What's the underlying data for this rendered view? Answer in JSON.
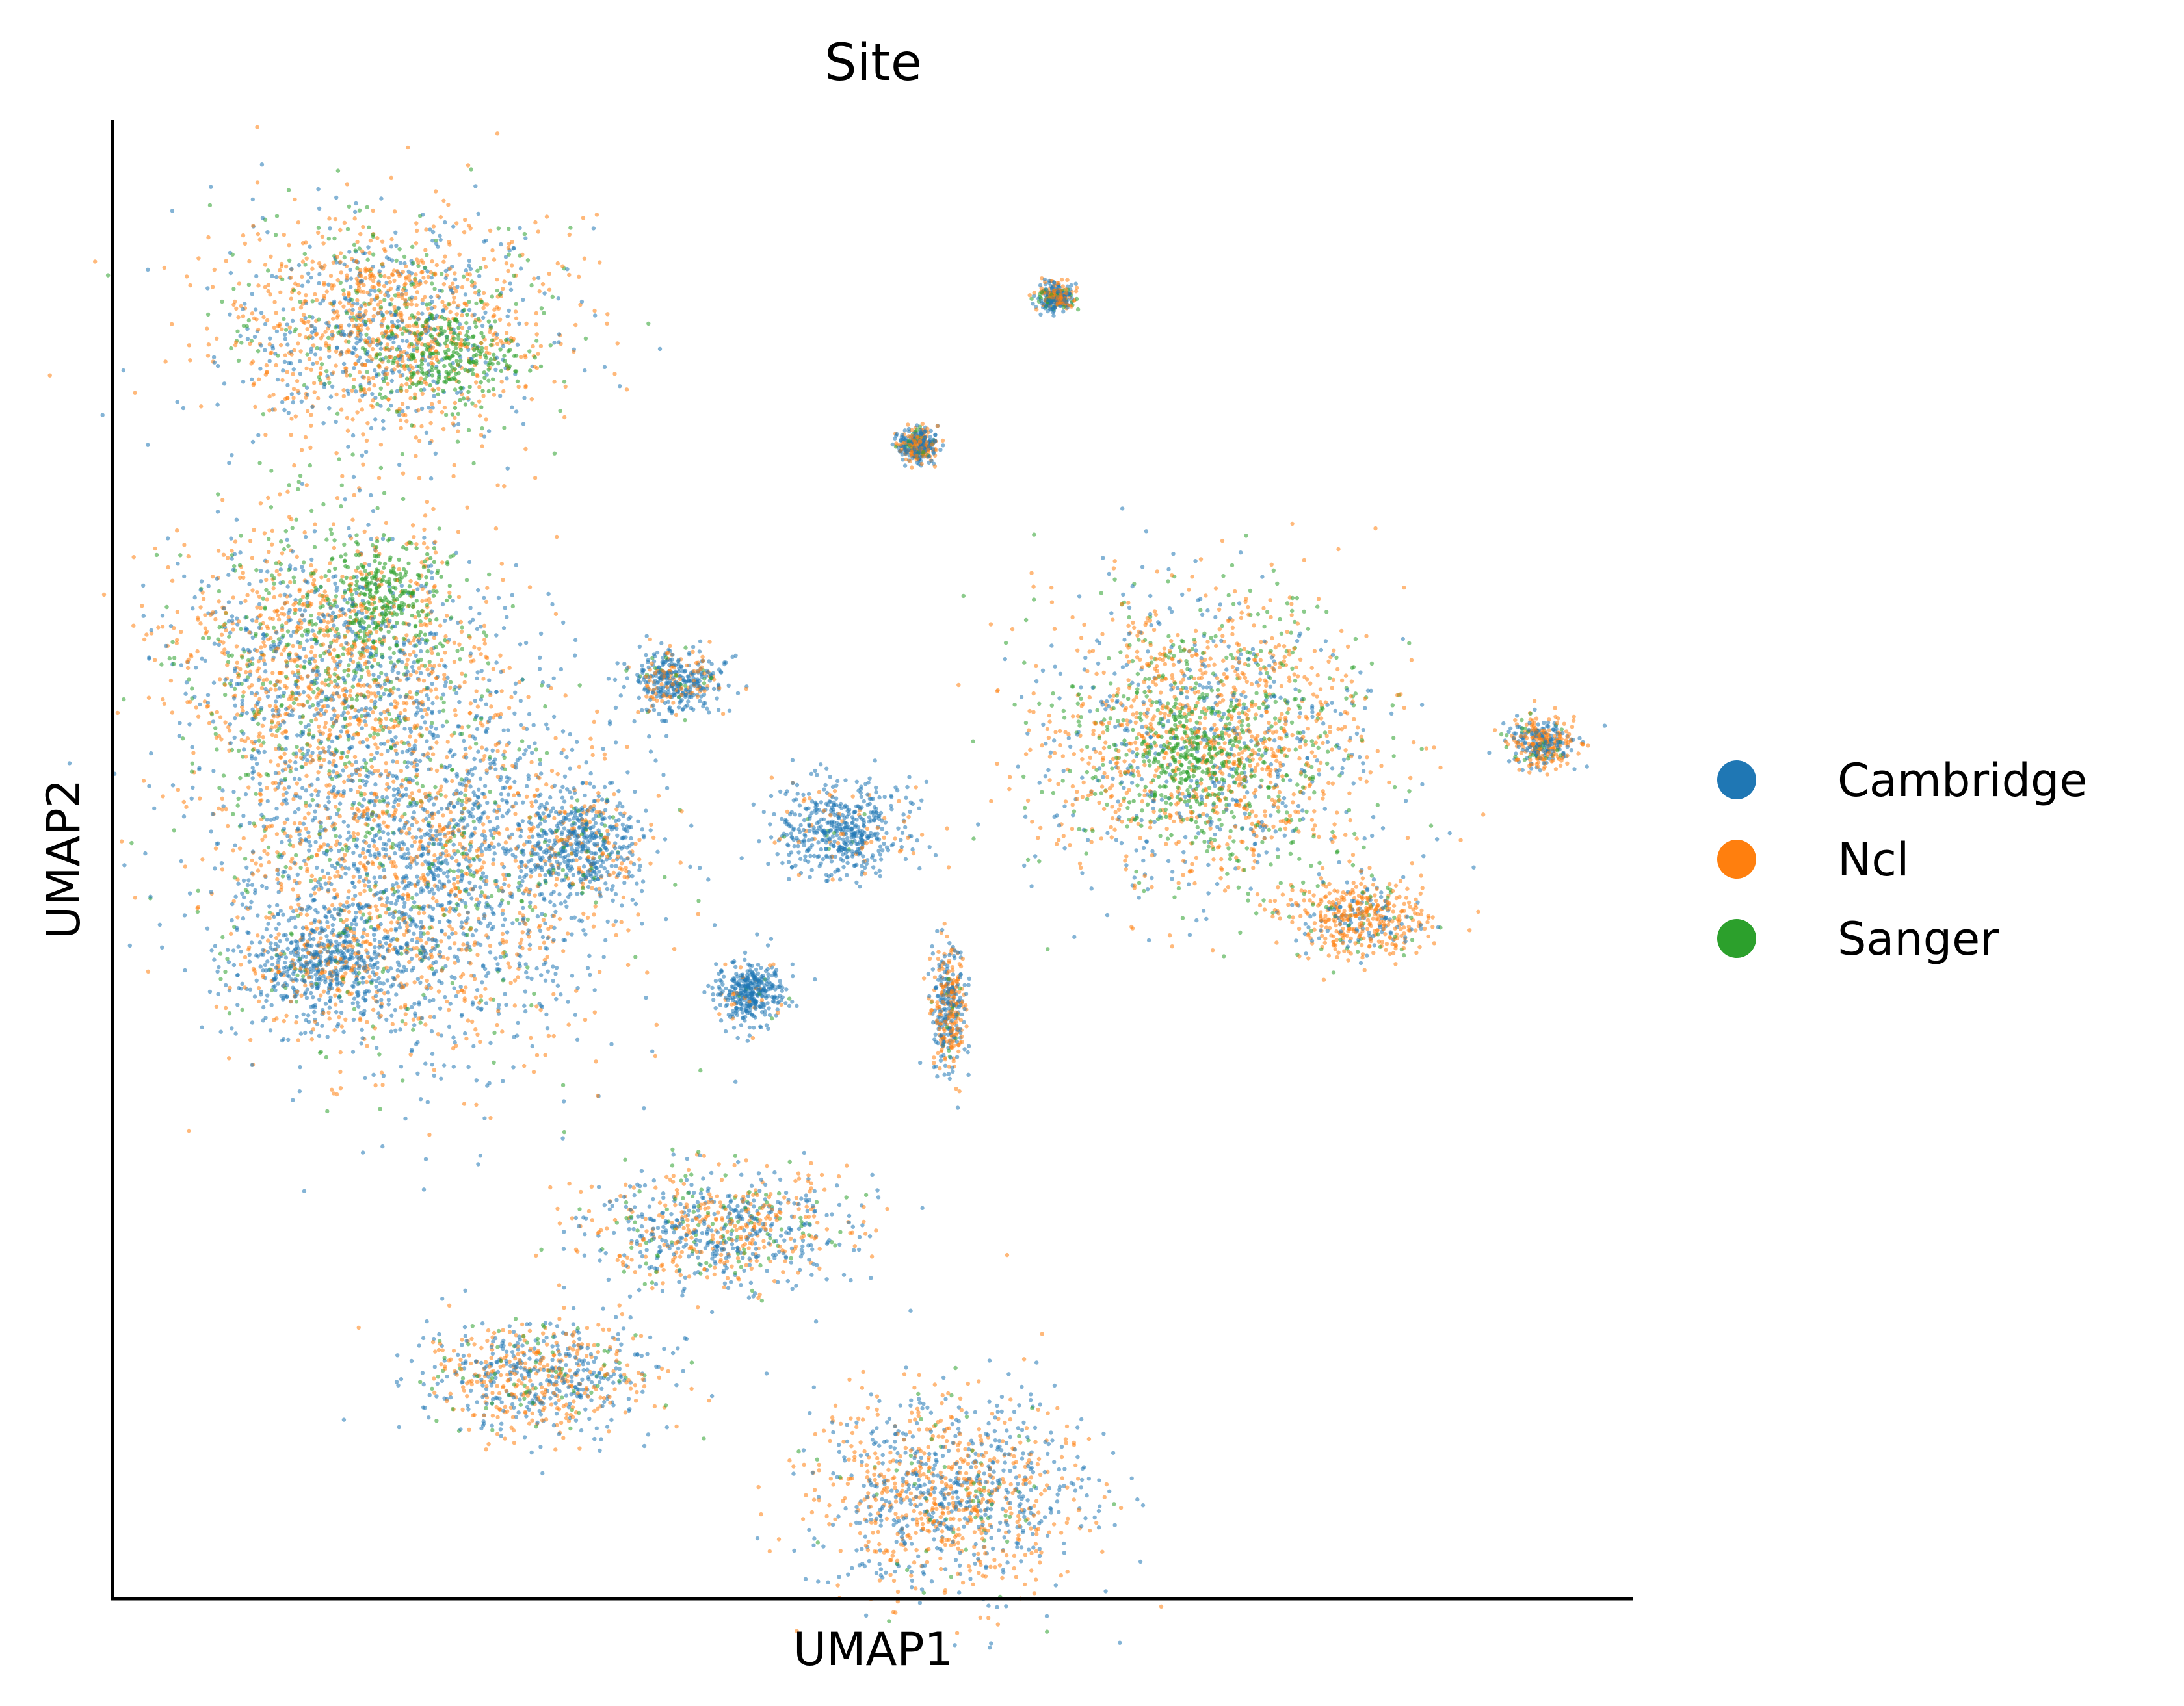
{
  "chart_data": {
    "type": "scatter",
    "title": "Site",
    "xlabel": "UMAP1",
    "ylabel": "UMAP2",
    "xlim": [
      0,
      100
    ],
    "ylim": [
      0,
      100
    ],
    "xticks": false,
    "yticks": false,
    "grid": false,
    "axes_spines": [
      "left",
      "bottom"
    ],
    "legend": {
      "placement": "right, outside plot"
    },
    "series": [
      {
        "name": "Cambridge",
        "color": "#1f77b4"
      },
      {
        "name": "Ncl",
        "color": "#ff7f0e"
      },
      {
        "name": "Sanger",
        "color": "#2ca02c"
      }
    ],
    "clusters": [
      {
        "label_desc": "top-left large cluster",
        "cx": 18,
        "cy": 86,
        "rx": 10,
        "ry": 7,
        "mix": [
          0.3,
          0.55,
          0.15
        ],
        "green_core": [
          22,
          84
        ]
      },
      {
        "label_desc": "left middle mass",
        "cx": 14,
        "cy": 64,
        "rx": 9,
        "ry": 8,
        "mix": [
          0.3,
          0.45,
          0.25
        ],
        "green_core": [
          18,
          68
        ]
      },
      {
        "label_desc": "left blue-orange body",
        "cx": 20,
        "cy": 50,
        "rx": 12,
        "ry": 12,
        "mix": [
          0.55,
          0.35,
          0.1
        ]
      },
      {
        "label_desc": "bottom-left blue blob",
        "cx": 14,
        "cy": 43,
        "rx": 5,
        "ry": 3,
        "mix": [
          0.7,
          0.25,
          0.05
        ]
      },
      {
        "label_desc": "blue blob right of left mass",
        "cx": 31,
        "cy": 51,
        "rx": 3,
        "ry": 3,
        "mix": [
          0.75,
          0.2,
          0.05
        ]
      },
      {
        "label_desc": "small blue islands",
        "cx": 37,
        "cy": 62,
        "rx": 3,
        "ry": 2,
        "mix": [
          0.7,
          0.25,
          0.05
        ]
      },
      {
        "label_desc": "right large cluster",
        "cx": 72,
        "cy": 58,
        "rx": 10,
        "ry": 9,
        "mix": [
          0.25,
          0.5,
          0.25
        ],
        "green_core": [
          71,
          57
        ]
      },
      {
        "label_desc": "right tail",
        "cx": 82,
        "cy": 46,
        "rx": 4,
        "ry": 2.5,
        "mix": [
          0.2,
          0.7,
          0.1
        ]
      },
      {
        "label_desc": "far right small cluster",
        "cx": 94,
        "cy": 58,
        "rx": 2,
        "ry": 1.5,
        "mix": [
          0.4,
          0.5,
          0.1
        ]
      },
      {
        "label_desc": "top small cluster",
        "cx": 62,
        "cy": 88,
        "rx": 1,
        "ry": 0.8,
        "mix": [
          0.5,
          0.4,
          0.1
        ]
      },
      {
        "label_desc": "upper-middle small cluster",
        "cx": 53,
        "cy": 78,
        "rx": 1.2,
        "ry": 1,
        "mix": [
          0.5,
          0.4,
          0.1
        ]
      },
      {
        "label_desc": "center blue streaks",
        "cx": 48,
        "cy": 52,
        "rx": 4,
        "ry": 3,
        "mix": [
          0.85,
          0.12,
          0.03
        ]
      },
      {
        "label_desc": "center lower blue streak",
        "cx": 42,
        "cy": 41,
        "rx": 2,
        "ry": 2,
        "mix": [
          0.9,
          0.08,
          0.02
        ]
      },
      {
        "label_desc": "vertical orange strand",
        "cx": 55,
        "cy": 40,
        "rx": 1,
        "ry": 4,
        "mix": [
          0.5,
          0.45,
          0.05
        ]
      },
      {
        "label_desc": "bottom cluster group right",
        "cx": 40,
        "cy": 25,
        "rx": 8,
        "ry": 3.5,
        "mix": [
          0.5,
          0.35,
          0.15
        ]
      },
      {
        "label_desc": "bottom cluster group left",
        "cx": 28,
        "cy": 15,
        "rx": 7,
        "ry": 3.5,
        "mix": [
          0.45,
          0.45,
          0.1
        ]
      },
      {
        "label_desc": "bottom small nodes",
        "cx": 55,
        "cy": 7,
        "rx": 8,
        "ry": 6,
        "mix": [
          0.45,
          0.5,
          0.05
        ]
      }
    ]
  }
}
